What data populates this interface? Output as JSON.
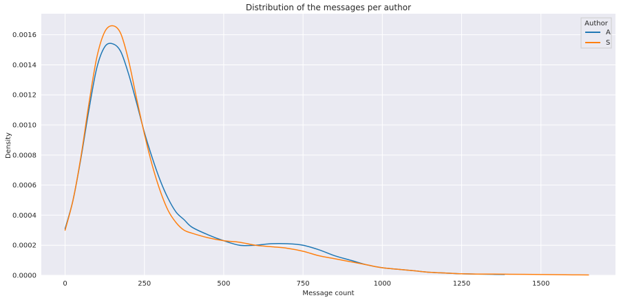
{
  "chart_data": {
    "type": "line",
    "title": "Distribution of the messages per author",
    "xlabel": "Message count",
    "ylabel": "Density",
    "xlim": [
      -75,
      1735
    ],
    "ylim": [
      0,
      0.00174
    ],
    "x_ticks": [
      0,
      250,
      500,
      750,
      1000,
      1250,
      1500
    ],
    "x_tick_labels": [
      "0",
      "250",
      "500",
      "750",
      "1000",
      "1250",
      "1500"
    ],
    "y_ticks": [
      0,
      0.0002,
      0.0004,
      0.0006,
      0.0008,
      0.001,
      0.0012,
      0.0014,
      0.0016
    ],
    "y_tick_labels": [
      "0.0000",
      "0.0002",
      "0.0004",
      "0.0006",
      "0.0008",
      "0.0010",
      "0.0012",
      "0.0014",
      "0.0016"
    ],
    "grid": true,
    "legend": {
      "title": "Author",
      "placement": "top-right"
    },
    "series": [
      {
        "name": "A",
        "color": "#1f77b4",
        "points": [
          [
            0,
            0.00031
          ],
          [
            25,
            0.0005
          ],
          [
            50,
            0.00078
          ],
          [
            75,
            0.0011
          ],
          [
            100,
            0.00138
          ],
          [
            125,
            0.00152
          ],
          [
            150,
            0.00154
          ],
          [
            175,
            0.00149
          ],
          [
            200,
            0.00134
          ],
          [
            225,
            0.00115
          ],
          [
            250,
            0.00095
          ],
          [
            275,
            0.00078
          ],
          [
            300,
            0.00063
          ],
          [
            325,
            0.00051
          ],
          [
            350,
            0.00042
          ],
          [
            375,
            0.00037
          ],
          [
            400,
            0.00032
          ],
          [
            450,
            0.00027
          ],
          [
            500,
            0.00023
          ],
          [
            550,
            0.0002
          ],
          [
            600,
            0.0002
          ],
          [
            650,
            0.00021
          ],
          [
            700,
            0.00021
          ],
          [
            750,
            0.0002
          ],
          [
            800,
            0.00017
          ],
          [
            850,
            0.00013
          ],
          [
            900,
            0.0001
          ],
          [
            950,
            7e-05
          ],
          [
            1000,
            5e-05
          ],
          [
            1050,
            4e-05
          ],
          [
            1100,
            3e-05
          ],
          [
            1150,
            2e-05
          ],
          [
            1200,
            1.5e-05
          ],
          [
            1250,
            1e-05
          ],
          [
            1300,
            8e-06
          ],
          [
            1350,
            6e-06
          ],
          [
            1385,
            5e-06
          ]
        ]
      },
      {
        "name": "S",
        "color": "#ff7f0e",
        "points": [
          [
            0,
            0.0003
          ],
          [
            25,
            0.0005
          ],
          [
            50,
            0.00079
          ],
          [
            75,
            0.00114
          ],
          [
            100,
            0.00145
          ],
          [
            125,
            0.00162
          ],
          [
            150,
            0.00166
          ],
          [
            175,
            0.00161
          ],
          [
            200,
            0.00143
          ],
          [
            225,
            0.00118
          ],
          [
            250,
            0.00094
          ],
          [
            275,
            0.00073
          ],
          [
            300,
            0.00056
          ],
          [
            325,
            0.00043
          ],
          [
            350,
            0.00035
          ],
          [
            375,
            0.0003
          ],
          [
            400,
            0.00028
          ],
          [
            450,
            0.00025
          ],
          [
            500,
            0.00023
          ],
          [
            550,
            0.00022
          ],
          [
            600,
            0.0002
          ],
          [
            650,
            0.00019
          ],
          [
            700,
            0.00018
          ],
          [
            750,
            0.00016
          ],
          [
            800,
            0.00013
          ],
          [
            850,
            0.00011
          ],
          [
            900,
            9e-05
          ],
          [
            950,
            7e-05
          ],
          [
            1000,
            5e-05
          ],
          [
            1050,
            4e-05
          ],
          [
            1100,
            3e-05
          ],
          [
            1150,
            2e-05
          ],
          [
            1200,
            1.5e-05
          ],
          [
            1250,
            1e-05
          ],
          [
            1300,
            8e-06
          ],
          [
            1350,
            8e-06
          ],
          [
            1400,
            7e-06
          ],
          [
            1450,
            6e-06
          ],
          [
            1500,
            5e-06
          ],
          [
            1550,
            4e-06
          ],
          [
            1600,
            3e-06
          ],
          [
            1650,
            2e-06
          ]
        ]
      }
    ]
  }
}
